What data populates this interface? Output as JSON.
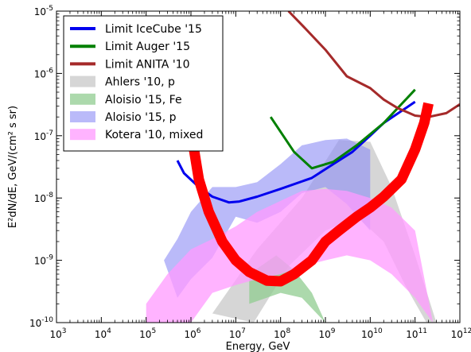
{
  "chart_data": {
    "type": "line",
    "title": "",
    "xlabel": "Energy, GeV",
    "ylabel": "E²dN/dE, GeV/(cm² s sr)",
    "xscale": "log",
    "yscale": "log",
    "xlim": [
      1000,
      1000000000000
    ],
    "ylim": [
      1e-10,
      1e-05
    ],
    "x_tick_labels": [
      {
        "base": "10",
        "exp": "3"
      },
      {
        "base": "10",
        "exp": "4"
      },
      {
        "base": "10",
        "exp": "5"
      },
      {
        "base": "10",
        "exp": "6"
      },
      {
        "base": "10",
        "exp": "7"
      },
      {
        "base": "10",
        "exp": "8"
      },
      {
        "base": "10",
        "exp": "9"
      },
      {
        "base": "10",
        "exp": "10"
      },
      {
        "base": "10",
        "exp": "11"
      },
      {
        "base": "10",
        "exp": "12"
      }
    ],
    "y_tick_labels": [
      {
        "base": "10",
        "exp": "-10"
      },
      {
        "base": "10",
        "exp": "-9"
      },
      {
        "base": "10",
        "exp": "-8"
      },
      {
        "base": "10",
        "exp": "-7"
      },
      {
        "base": "10",
        "exp": "-6"
      },
      {
        "base": "10",
        "exp": "-5"
      }
    ],
    "legend_position": "top-left",
    "grid": false,
    "limits": [
      {
        "name": "Limit IceCube '15",
        "color": "#0000ee",
        "x": [
          500000.0,
          700000.0,
          1500000.0,
          3000000.0,
          7000000.0,
          12000000.0,
          30000000.0,
          100000000.0,
          500000000.0,
          1500000000.0,
          4000000000.0,
          10000000000.0,
          20000000000.0,
          100000000000.0
        ],
        "y": [
          4e-08,
          2.5e-08,
          1.5e-08,
          1.05e-08,
          8.5e-09,
          8.8e-09,
          1.05e-08,
          1.4e-08,
          2.1e-08,
          3.5e-08,
          5.5e-08,
          1e-07,
          1.6e-07,
          3.5e-07
        ]
      },
      {
        "name": "Limit Auger '15",
        "color": "#008000",
        "x": [
          60000000.0,
          200000000.0,
          500000000.0,
          1500000000.0,
          5000000000.0,
          20000000000.0,
          100000000000.0
        ],
        "y": [
          2e-07,
          5.5e-08,
          3e-08,
          3.8e-08,
          7e-08,
          1.6e-07,
          5.5e-07
        ]
      },
      {
        "name": "Limit ANITA '10",
        "color": "#a52a2a",
        "x": [
          150000000.0,
          300000000.0,
          1000000000.0,
          3000000000.0,
          10000000000.0,
          20000000000.0,
          40000000000.0,
          100000000000.0,
          200000000000.0,
          500000000000.0,
          1000000000000.0
        ],
        "y": [
          1e-05,
          6e-06,
          2.4e-06,
          9e-07,
          5.8e-07,
          3.8e-07,
          2.8e-07,
          2.1e-07,
          2e-07,
          2.3e-07,
          3.2e-07
        ]
      }
    ],
    "models": [
      {
        "name": "Ahlers '10, p",
        "color": "#c8c8c8",
        "opacity": 0.75,
        "upper": {
          "x": [
            3000000.0,
            30000000.0,
            300000000.0,
            2000000000.0,
            10000000000.0,
            30000000000.0,
            100000000000.0,
            300000000000.0
          ],
          "y": [
            1.4e-10,
            1.5e-09,
            1e-08,
            8.5e-08,
            8e-08,
            1.5e-08,
            1.2e-09,
            1e-10
          ]
        },
        "lower": {
          "x": [
            25000000.0,
            150000000.0,
            1000000000.0,
            5000000000.0,
            20000000000.0,
            60000000000.0,
            180000000000.0
          ],
          "y": [
            1e-10,
            8e-10,
            3e-09,
            5e-09,
            2e-09,
            4e-10,
            1e-10
          ]
        }
      },
      {
        "name": "Aloisio '15, Fe",
        "color": "#90cc90",
        "opacity": 0.75,
        "upper": {
          "x": [
            20000000.0,
            80000000.0,
            200000000.0,
            500000000.0,
            1000000000.0
          ],
          "y": [
            6e-10,
            1.2e-09,
            7e-10,
            3e-10,
            1e-10
          ]
        },
        "lower": {
          "x": [
            20000000.0,
            100000000.0,
            300000000.0,
            1000000000.0
          ],
          "y": [
            2e-10,
            3e-10,
            2.5e-10,
            1e-10
          ]
        }
      },
      {
        "name": "Aloisio '15, p",
        "color": "#8c8cf5",
        "opacity": 0.6,
        "upper": {
          "x": [
            250000.0,
            500000.0,
            1000000.0,
            3000000.0,
            10000000.0,
            30000000.0,
            100000000.0,
            300000000.0,
            1000000000.0,
            3000000000.0,
            10000000000.0
          ],
          "y": [
            1e-09,
            2.2e-09,
            6e-09,
            1.5e-08,
            1.5e-08,
            1.8e-08,
            3.5e-08,
            7e-08,
            8.5e-08,
            9e-08,
            6e-08
          ]
        },
        "lower": {
          "x": [
            500000.0,
            1000000.0,
            3000000.0,
            10000000.0,
            30000000.0,
            100000000.0,
            300000000.0,
            1000000000.0,
            3000000000.0,
            10000000000.0
          ],
          "y": [
            2.5e-10,
            5e-10,
            1.1e-09,
            5e-09,
            4e-09,
            6e-09,
            1.2e-08,
            1.5e-08,
            8e-09,
            3e-09
          ]
        }
      },
      {
        "name": "Kotera '10, mixed",
        "color": "#ff99ff",
        "opacity": 0.75,
        "upper": {
          "x": [
            100000.0,
            300000.0,
            1000000.0,
            3000000.0,
            10000000.0,
            30000000.0,
            100000000.0,
            300000000.0,
            1000000000.0,
            3000000000.0,
            10000000000.0,
            30000000000.0,
            100000000000.0
          ],
          "y": [
            2e-10,
            6e-10,
            1.5e-09,
            2.2e-09,
            3.5e-09,
            6e-09,
            9e-09,
            1.3e-08,
            1.4e-08,
            1.3e-08,
            1e-08,
            7e-09,
            3e-09
          ]
        },
        "lower": {
          "x": [
            100000.0,
            1000000.0,
            3000000.0,
            10000000.0,
            30000000.0,
            100000000.0,
            300000000.0,
            1000000000.0,
            3000000000.0,
            10000000000.0,
            30000000000.0,
            100000000000.0,
            250000000000.0
          ],
          "y": [
            1e-10,
            1e-10,
            3e-10,
            4e-10,
            5e-10,
            6e-10,
            8e-10,
            1e-09,
            1.2e-09,
            1e-09,
            6e-10,
            2.5e-10,
            1e-10
          ]
        }
      }
    ],
    "highlight_curve": {
      "color": "#ff0000",
      "x": [
        1000000.0,
        1500000.0,
        2500000.0,
        5000000.0,
        10000000.0,
        20000000.0,
        50000000.0,
        100000000.0,
        200000000.0,
        500000000.0,
        1000000000.0,
        2000000000.0,
        5000000000.0,
        10000000000.0,
        20000000000.0,
        50000000000.0,
        100000000000.0,
        160000000000.0,
        200000000000.0
      ],
      "y": [
        1.2e-07,
        2e-08,
        6e-09,
        2e-09,
        1e-09,
        6.5e-10,
        4.7e-10,
        4.6e-10,
        6e-10,
        1e-09,
        2e-09,
        3e-09,
        5e-09,
        7e-09,
        1.05e-08,
        2e-08,
        6e-08,
        1.6e-07,
        3.3e-07
      ]
    }
  }
}
